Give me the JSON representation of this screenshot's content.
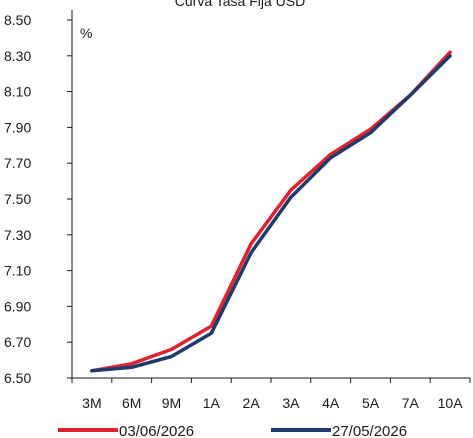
{
  "chart_data": {
    "type": "line",
    "title": "Curva Tasa Fija USD",
    "unit": "%",
    "categories": [
      "3M",
      "6M",
      "9M",
      "1A",
      "2A",
      "3A",
      "4A",
      "5A",
      "7A",
      "10A"
    ],
    "ylim": [
      6.5,
      8.5
    ],
    "yticks": [
      "6.50",
      "6.70",
      "6.90",
      "7.10",
      "7.30",
      "7.50",
      "7.70",
      "7.90",
      "8.10",
      "8.30",
      "8.50"
    ],
    "grid": false,
    "legend_position": "bottom",
    "series": [
      {
        "name": "03/06/2026",
        "color": "#e4202f",
        "values": [
          6.54,
          6.58,
          6.66,
          6.79,
          7.25,
          7.55,
          7.75,
          7.89,
          8.08,
          8.32
        ]
      },
      {
        "name": "27/05/2026",
        "color": "#1f3a6d",
        "values": [
          6.54,
          6.56,
          6.62,
          6.75,
          7.2,
          7.51,
          7.73,
          7.87,
          8.08,
          8.3
        ]
      }
    ]
  }
}
